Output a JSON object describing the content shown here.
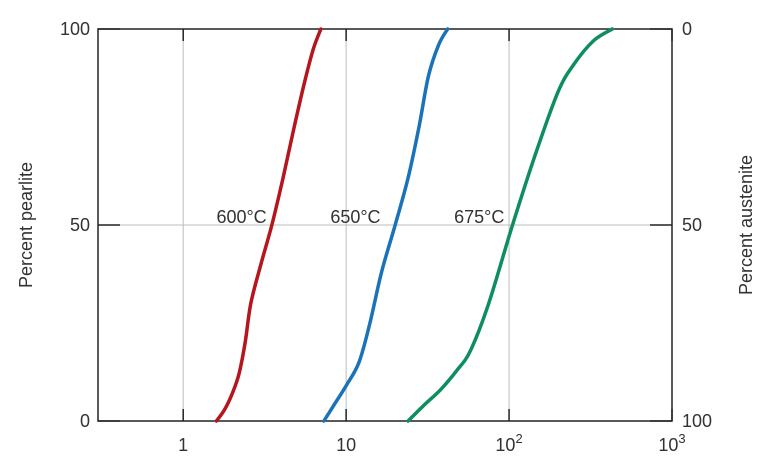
{
  "chart_data": {
    "type": "line",
    "x_scale": "log",
    "xlim": [
      0.3,
      1000
    ],
    "ylim": [
      0,
      100
    ],
    "grid": true,
    "ylabel_left": "Percent pearlite",
    "ylabel_right": "Percent austenite",
    "x_ticks": [
      {
        "value": 1,
        "base": "1",
        "sup": ""
      },
      {
        "value": 10,
        "base": "10",
        "sup": ""
      },
      {
        "value": 100,
        "base": "10",
        "sup": "2"
      },
      {
        "value": 1000,
        "base": "10",
        "sup": "3"
      }
    ],
    "y_ticks_left": [
      {
        "value": 0,
        "label": "0"
      },
      {
        "value": 50,
        "label": "50"
      },
      {
        "value": 100,
        "label": "100"
      }
    ],
    "y_ticks_right": [
      {
        "value": 0,
        "label": "100"
      },
      {
        "value": 50,
        "label": "50"
      },
      {
        "value": 100,
        "label": "0"
      }
    ],
    "series": [
      {
        "name": "600°C",
        "color": "#b5161e",
        "label_at": {
          "x": 1.6,
          "y": 50
        },
        "points": [
          [
            1.6,
            0
          ],
          [
            1.8,
            3
          ],
          [
            2.0,
            7
          ],
          [
            2.2,
            12
          ],
          [
            2.4,
            20
          ],
          [
            2.6,
            30
          ],
          [
            3.0,
            40
          ],
          [
            3.5,
            50
          ],
          [
            4.1,
            62
          ],
          [
            4.8,
            75
          ],
          [
            5.6,
            87
          ],
          [
            6.3,
            95
          ],
          [
            7.0,
            100
          ]
        ]
      },
      {
        "name": "650°C",
        "color": "#1a72b8",
        "label_at": {
          "x": 8.0,
          "y": 50
        },
        "points": [
          [
            7.3,
            0
          ],
          [
            8.4,
            4
          ],
          [
            10.0,
            9
          ],
          [
            12.0,
            15
          ],
          [
            14.0,
            25
          ],
          [
            16.5,
            38
          ],
          [
            20.0,
            50
          ],
          [
            24.0,
            62
          ],
          [
            28.0,
            75
          ],
          [
            32.0,
            88
          ],
          [
            37.0,
            96
          ],
          [
            42.0,
            100
          ]
        ]
      },
      {
        "name": "675°C",
        "color": "#0e8d5e",
        "label_at": {
          "x": 46.0,
          "y": 50
        },
        "points": [
          [
            24.0,
            0
          ],
          [
            30.0,
            4
          ],
          [
            38.0,
            8
          ],
          [
            48.0,
            13
          ],
          [
            58.0,
            18
          ],
          [
            75.0,
            30
          ],
          [
            105.0,
            50
          ],
          [
            145.0,
            68
          ],
          [
            200.0,
            84
          ],
          [
            250.0,
            91
          ],
          [
            330.0,
            97
          ],
          [
            430.0,
            100
          ]
        ]
      }
    ]
  }
}
